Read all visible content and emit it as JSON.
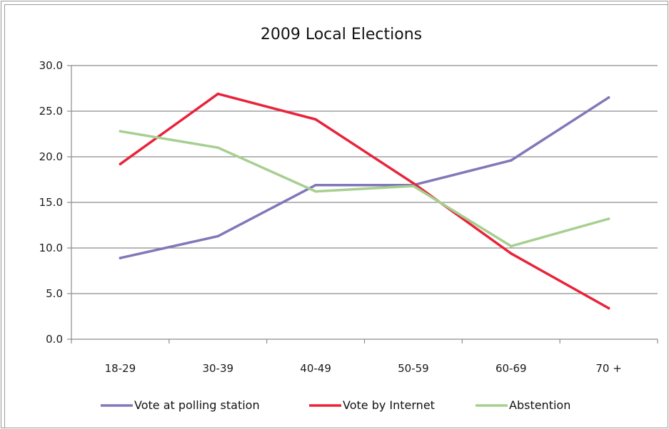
{
  "chart_data": {
    "type": "line",
    "title": "2009 Local Elections",
    "xlabel": "",
    "ylabel": "",
    "categories": [
      "18-29",
      "30-39",
      "40-49",
      "50-59",
      "60-69",
      "70 +"
    ],
    "ylim": [
      0,
      30
    ],
    "yticks": [
      "0.0",
      "5.0",
      "10.0",
      "15.0",
      "20.0",
      "25.0",
      "30.0"
    ],
    "grid": true,
    "legend": "bottom",
    "series": [
      {
        "name": "Vote at polling station",
        "color": "#8078b8",
        "values": [
          8.9,
          11.3,
          16.9,
          16.9,
          19.6,
          26.5
        ]
      },
      {
        "name": "Vote by Internet",
        "color": "#e8233a",
        "values": [
          19.2,
          26.9,
          24.1,
          17.1,
          9.4,
          3.4
        ]
      },
      {
        "name": "Abstention",
        "color": "#a6cf90",
        "values": [
          22.8,
          21.0,
          16.2,
          16.8,
          10.2,
          13.2
        ]
      }
    ]
  }
}
